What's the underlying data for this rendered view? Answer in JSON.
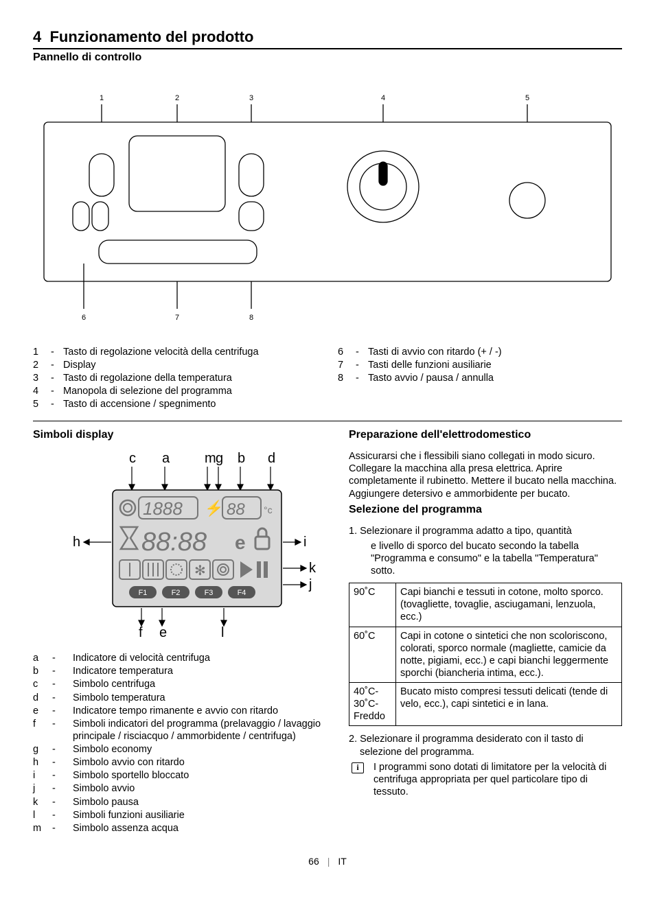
{
  "header": {
    "section_number": "4",
    "section_title": "Funzionamento del prodotto",
    "subtitle": "Pannello di controllo"
  },
  "panel_diagram": {
    "top_labels": [
      "1",
      "2",
      "3",
      "4",
      "5"
    ],
    "bottom_labels": [
      "6",
      "7",
      "8"
    ],
    "stroke": "#000000",
    "fill": "#ffffff"
  },
  "panel_legend_left": [
    {
      "n": "1",
      "t": "Tasto di regolazione velocità della centrifuga"
    },
    {
      "n": "2",
      "t": "Display"
    },
    {
      "n": "3",
      "t": "Tasto di regolazione della temperatura"
    },
    {
      "n": "4",
      "t": "Manopola di selezione del programma"
    },
    {
      "n": "5",
      "t": "Tasto di accensione / spegnimento"
    }
  ],
  "panel_legend_right": [
    {
      "n": "6",
      "t": "Tasti di avvio con ritardo (+ / -)"
    },
    {
      "n": "7",
      "t": "Tasti delle funzioni ausiliarie"
    },
    {
      "n": "8",
      "t": "Tasto avvio / pausa / annulla"
    }
  ],
  "symbols": {
    "title": "Simboli display",
    "callout_letters": [
      "c",
      "a",
      "m",
      "g",
      "b",
      "d",
      "h",
      "i",
      "k",
      "j",
      "f",
      "e",
      "l"
    ],
    "seg_text_top1": "1888",
    "seg_text_top2": "88",
    "seg_text_mid": "88:88",
    "f_labels": [
      "F1",
      "F2",
      "F3",
      "F4"
    ]
  },
  "symbol_legend": [
    {
      "l": "a",
      "t": "Indicatore di velocità centrifuga"
    },
    {
      "l": "b",
      "t": "Indicatore temperatura"
    },
    {
      "l": "c",
      "t": "Simbolo centrifuga"
    },
    {
      "l": "d",
      "t": "Simbolo temperatura"
    },
    {
      "l": "e",
      "t": "Indicatore tempo rimanente e avvio con ritardo"
    },
    {
      "l": "f",
      "t": "Simboli indicatori del programma (prelavaggio / lavaggio principale / risciacquo / ammorbidente / centrifuga)"
    },
    {
      "l": "g",
      "t": "Simbolo economy"
    },
    {
      "l": "h",
      "t": "Simbolo avvio con ritardo"
    },
    {
      "l": "i",
      "t": "Simbolo sportello bloccato"
    },
    {
      "l": "j",
      "t": "Simbolo avvio"
    },
    {
      "l": "k",
      "t": "Simbolo pausa"
    },
    {
      "l": "l",
      "t": "Simboli funzioni ausiliarie"
    },
    {
      "l": "m",
      "t": "Simbolo assenza acqua"
    }
  ],
  "prep": {
    "title": "Preparazione dell'elettrodomestico",
    "body": "Assicurarsi che i flessibili siano collegati in modo sicuro. Collegare la macchina alla presa elettrica. Aprire completamente il rubinetto. Mettere il bucato nella macchina. Aggiungere detersivo e ammorbidente per bucato."
  },
  "select": {
    "title": "Selezione del programma",
    "step1a": "1. Selezionare il programma adatto a tipo, quantità",
    "step1b": "e livello di sporco del bucato secondo la tabella \"Programma e consumo\" e la tabella \"Temperatura\" sotto."
  },
  "temp_table": [
    {
      "temp": "90˚C",
      "desc": "Capi bianchi e tessuti in cotone, molto sporco.  (tovagliette, tovaglie, asciugamani, lenzuola, ecc.)"
    },
    {
      "temp": "60˚C",
      "desc": "Capi in cotone o sintetici che non scoloriscono, colorati, sporco normale (magliette, camicie da notte, pigiami, ecc.) e capi bianchi leggermente sporchi (biancheria intima, ecc.)."
    },
    {
      "temp": "40˚C-30˚C-Freddo",
      "desc": "Bucato misto compresi tessuti delicati (tende di velo, ecc.), capi sintetici e in lana."
    }
  ],
  "step2": "2. Selezionare il programma desiderato con il tasto di selezione del programma.",
  "info": "I programmi sono dotati di limitatore per la velocità di centrifuga appropriata per quel particolare tipo di tessuto.",
  "footer": {
    "page": "66",
    "lang": "IT"
  }
}
